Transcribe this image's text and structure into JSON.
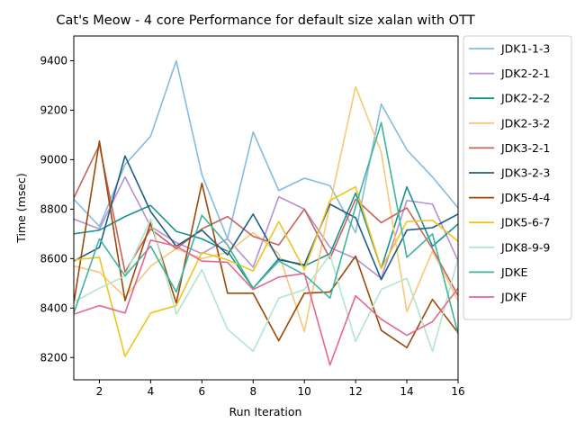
{
  "chart_data": {
    "type": "line",
    "title": "Cat's Meow - 4 core Performance for default size xalan with OTT",
    "xlabel": "Run Iteration",
    "ylabel": "Time (msec)",
    "xlim": [
      1,
      16
    ],
    "ylim": [
      8110,
      9500
    ],
    "xticks": [
      2,
      4,
      6,
      8,
      10,
      12,
      14,
      16
    ],
    "yticks": [
      8200,
      8400,
      8600,
      8800,
      9000,
      9200,
      9400
    ],
    "legend": "outside-right",
    "x": [
      1,
      2,
      3,
      4,
      5,
      6,
      7,
      8,
      9,
      10,
      11,
      12,
      13,
      14,
      15,
      16
    ],
    "series": [
      {
        "name": "JDK1-1-3",
        "color": "#85bbe0",
        "values": [
          8840,
          8730,
          8980,
          9095,
          9400,
          8940,
          8680,
          9112,
          8875,
          8925,
          8895,
          8705,
          9225,
          9040,
          8930,
          8805
        ]
      },
      {
        "name": "JDK2-2-1",
        "color": "#b591d6",
        "values": [
          8760,
          8720,
          8930,
          8730,
          8665,
          8620,
          8680,
          8565,
          8850,
          8800,
          8645,
          8600,
          8520,
          8835,
          8820,
          8590
        ]
      },
      {
        "name": "JDK2-2-2",
        "color": "#17948e",
        "values": [
          8700,
          8715,
          8770,
          8815,
          8710,
          8680,
          8630,
          8480,
          8600,
          8570,
          8620,
          8865,
          8560,
          8890,
          8650,
          8740
        ]
      },
      {
        "name": "JDK2-3-2",
        "color": "#f8c77a",
        "values": [
          8570,
          8545,
          8445,
          8570,
          8640,
          8600,
          8625,
          8705,
          8620,
          8305,
          8820,
          9295,
          9030,
          8385,
          8630,
          8430
        ]
      },
      {
        "name": "JDK3-2-1",
        "color": "#c96359",
        "values": [
          8845,
          9060,
          8545,
          8720,
          8640,
          8720,
          8770,
          8690,
          8655,
          8800,
          8600,
          8840,
          8745,
          8805,
          8640,
          8450
        ]
      },
      {
        "name": "JDK3-2-3",
        "color": "#1f5f85",
        "values": [
          8590,
          8645,
          9015,
          8790,
          8650,
          8715,
          8615,
          8780,
          8595,
          8575,
          8820,
          8765,
          8515,
          8715,
          8725,
          8780
        ]
      },
      {
        "name": "JDK5-4-4",
        "color": "#9a4a06",
        "values": [
          8420,
          9075,
          8430,
          8745,
          8420,
          8905,
          8460,
          8460,
          8268,
          8460,
          8465,
          8610,
          8310,
          8240,
          8435,
          8300
        ]
      },
      {
        "name": "JDK5-6-7",
        "color": "#f0c31f",
        "values": [
          8595,
          8605,
          8205,
          8380,
          8410,
          8625,
          8595,
          8550,
          8750,
          8555,
          8835,
          8890,
          8560,
          8750,
          8755,
          8670
        ]
      },
      {
        "name": "JDK8-9-9",
        "color": "#b3e6c8",
        "values": [
          8425,
          8480,
          8530,
          8760,
          8375,
          8555,
          8315,
          8225,
          8440,
          8475,
          8615,
          8265,
          8475,
          8520,
          8225,
          8600
        ]
      },
      {
        "name": "JDKE",
        "color": "#3fb59d",
        "values": [
          8380,
          8680,
          8530,
          8650,
          8465,
          8775,
          8655,
          8480,
          8590,
          8535,
          8440,
          8810,
          9150,
          8605,
          8700,
          8295
        ]
      },
      {
        "name": "JDKF",
        "color": "#e86590",
        "values": [
          8375,
          8410,
          8380,
          8675,
          8650,
          8590,
          8585,
          8475,
          8525,
          8540,
          8170,
          8450,
          8355,
          8290,
          8345,
          8480
        ]
      }
    ]
  }
}
